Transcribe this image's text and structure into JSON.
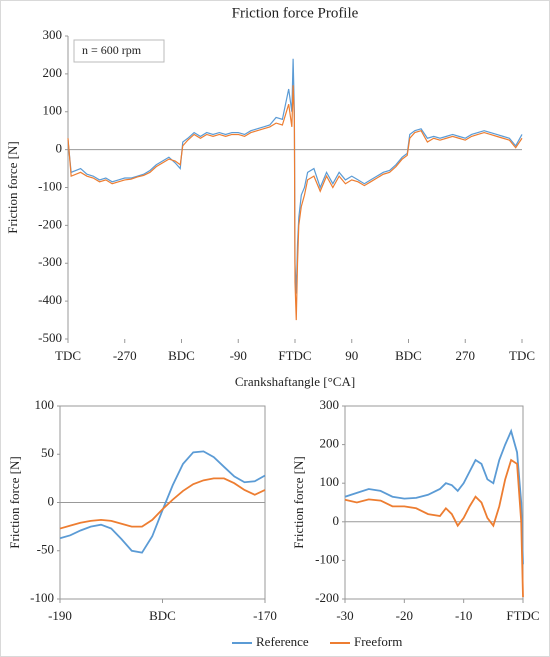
{
  "chart_data": [
    {
      "type": "line",
      "title": "Friction force Profile",
      "xlabel": "Crankshaftangle [°CA]",
      "ylabel": "Friction force [N]",
      "annotation": "n = 600 rpm",
      "x": [
        -360,
        -355,
        -340,
        -330,
        -320,
        -310,
        -300,
        -290,
        -280,
        -270,
        -260,
        -250,
        -240,
        -230,
        -220,
        -210,
        -200,
        -190,
        -182,
        -178,
        -170,
        -160,
        -150,
        -140,
        -130,
        -120,
        -110,
        -100,
        -90,
        -80,
        -70,
        -60,
        -50,
        -40,
        -30,
        -20,
        -10,
        -5,
        -3,
        -1,
        0,
        2,
        4,
        6,
        10,
        15,
        20,
        30,
        40,
        50,
        60,
        70,
        80,
        90,
        100,
        110,
        120,
        130,
        140,
        150,
        160,
        170,
        178,
        182,
        190,
        200,
        210,
        220,
        230,
        240,
        250,
        260,
        270,
        280,
        290,
        300,
        310,
        320,
        330,
        340,
        350,
        360
      ],
      "series": [
        {
          "name": "Reference",
          "color": "#5b9bd5",
          "values": [
            25,
            -60,
            -50,
            -65,
            -70,
            -80,
            -75,
            -85,
            -80,
            -75,
            -75,
            -70,
            -65,
            -55,
            -40,
            -30,
            -20,
            -35,
            -50,
            20,
            30,
            45,
            35,
            45,
            40,
            45,
            40,
            45,
            45,
            40,
            50,
            55,
            60,
            65,
            85,
            80,
            160,
            100,
            240,
            100,
            -300,
            -380,
            -250,
            -180,
            -120,
            -100,
            -60,
            -50,
            -100,
            -60,
            -90,
            -60,
            -80,
            -70,
            -80,
            -90,
            -80,
            -70,
            -60,
            -55,
            -40,
            -20,
            -10,
            40,
            50,
            55,
            30,
            35,
            30,
            35,
            40,
            35,
            30,
            40,
            45,
            50,
            45,
            40,
            35,
            30,
            10,
            40
          ]
        },
        {
          "name": "Freeform",
          "color": "#ed7d31",
          "values": [
            30,
            -70,
            -60,
            -70,
            -75,
            -85,
            -80,
            -90,
            -85,
            -80,
            -78,
            -72,
            -68,
            -60,
            -45,
            -35,
            -25,
            -30,
            -40,
            10,
            25,
            40,
            30,
            40,
            35,
            40,
            35,
            40,
            40,
            35,
            45,
            50,
            55,
            60,
            70,
            65,
            120,
            60,
            170,
            80,
            -350,
            -450,
            -300,
            -200,
            -150,
            -120,
            -80,
            -70,
            -110,
            -70,
            -100,
            -70,
            -90,
            -80,
            -85,
            -95,
            -85,
            -75,
            -65,
            -60,
            -45,
            -25,
            -15,
            30,
            45,
            50,
            20,
            30,
            25,
            30,
            35,
            30,
            25,
            35,
            40,
            45,
            40,
            35,
            30,
            25,
            5,
            30
          ]
        }
      ],
      "xlim": [
        -360,
        360
      ],
      "ylim": [
        -500,
        300
      ],
      "xticks": [
        {
          "value": -360,
          "label": "TDC"
        },
        -270,
        {
          "value": -180,
          "label": "BDC"
        },
        -90,
        {
          "value": 0,
          "label": "FTDC"
        },
        90,
        {
          "value": 180,
          "label": "BDC"
        },
        270,
        {
          "value": 360,
          "label": "TDC"
        }
      ],
      "yticks": [
        -500,
        -400,
        -300,
        -200,
        -100,
        0,
        100,
        200,
        300
      ],
      "grid": false
    },
    {
      "type": "line",
      "ylabel": "Friction force [N]",
      "x": [
        -190,
        -189,
        -188,
        -187,
        -186,
        -185,
        -184,
        -183,
        -182,
        -181,
        -180,
        -179,
        -178,
        -177,
        -176,
        -175,
        -174,
        -173,
        -172,
        -171,
        -170
      ],
      "series": [
        {
          "color": "#5b9bd5",
          "values": [
            -37,
            -34,
            -29,
            -25,
            -23,
            -27,
            -38,
            -50,
            -52,
            -35,
            -8,
            18,
            40,
            52,
            53,
            47,
            37,
            27,
            21,
            22,
            28
          ]
        },
        {
          "color": "#ed7d31",
          "values": [
            -27,
            -24,
            -21,
            -19,
            -18,
            -19,
            -22,
            -25,
            -25,
            -18,
            -7,
            3,
            12,
            19,
            23,
            25,
            25,
            20,
            13,
            8,
            13
          ]
        }
      ],
      "xlim": [
        -190,
        -170
      ],
      "ylim": [
        -100,
        100
      ],
      "xticks": [
        -190,
        {
          "value": -180,
          "label": "BDC"
        },
        -170
      ],
      "yticks": [
        -100,
        -50,
        0,
        50,
        100
      ],
      "grid": false
    },
    {
      "type": "line",
      "ylabel": "Friction force [N]",
      "x": [
        -30,
        -28,
        -26,
        -24,
        -22,
        -20,
        -18,
        -16,
        -14,
        -13,
        -12,
        -11,
        -10,
        -9,
        -8,
        -7,
        -6,
        -5,
        -4,
        -3,
        -2,
        -1,
        -0.3,
        0
      ],
      "series": [
        {
          "color": "#5b9bd5",
          "values": [
            65,
            75,
            85,
            80,
            65,
            60,
            62,
            70,
            85,
            100,
            95,
            80,
            100,
            130,
            160,
            150,
            110,
            100,
            160,
            200,
            235,
            180,
            50,
            -110
          ]
        },
        {
          "color": "#ed7d31",
          "values": [
            57,
            50,
            58,
            55,
            40,
            40,
            35,
            20,
            15,
            35,
            20,
            -10,
            10,
            40,
            65,
            50,
            10,
            -10,
            40,
            110,
            160,
            150,
            0,
            -195
          ]
        }
      ],
      "xlim": [
        -30,
        0
      ],
      "ylim": [
        -200,
        300
      ],
      "xticks": [
        -30,
        -20,
        -10,
        {
          "value": 0,
          "label": "FTDC"
        }
      ],
      "yticks": [
        -200,
        -100,
        0,
        100,
        200,
        300
      ],
      "grid": false
    }
  ]
}
